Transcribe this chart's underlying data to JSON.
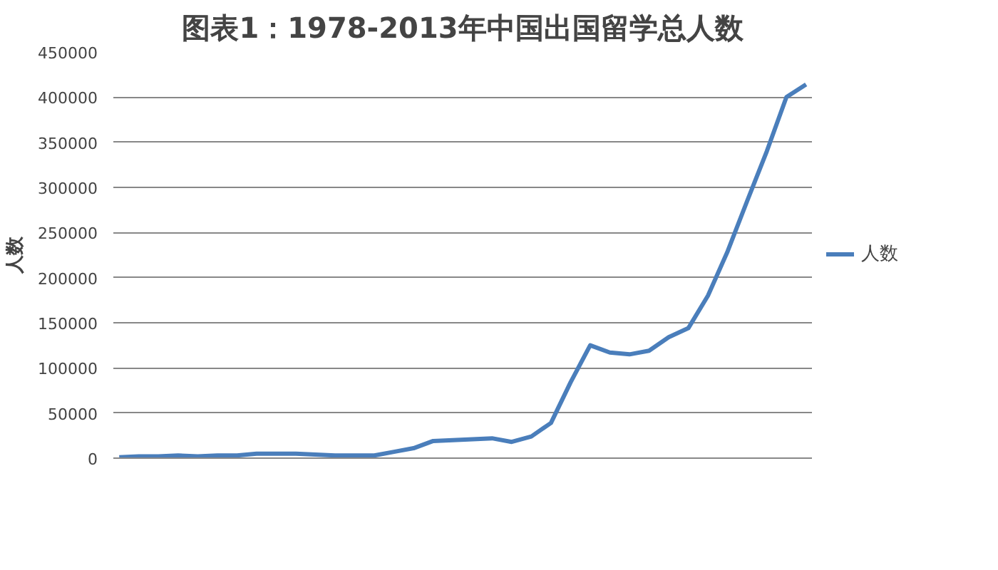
{
  "chart_data": {
    "type": "line",
    "title": "图表1：1978-2013年中国出国留学总人数",
    "ylabel": "人数",
    "categories": [
      null,
      null,
      null,
      null,
      null,
      null,
      null,
      null,
      null,
      null,
      null,
      null,
      null,
      null,
      null,
      null,
      null,
      null,
      null,
      null,
      null,
      null,
      null,
      null,
      null,
      null,
      null,
      null,
      null,
      null,
      null,
      null,
      null,
      null,
      null,
      null
    ],
    "series": [
      {
        "name": "人数",
        "color": "#4a7ebb",
        "values": [
          1000,
          2000,
          2000,
          3000,
          2000,
          3000,
          3000,
          5000,
          5000,
          5000,
          4000,
          3000,
          3000,
          3000,
          7000,
          11000,
          19000,
          20000,
          21000,
          22000,
          18000,
          24000,
          39000,
          84000,
          125000,
          117000,
          115000,
          119000,
          134000,
          144000,
          180000,
          229000,
          285000,
          340000,
          400000,
          414000
        ]
      }
    ],
    "ylim": [
      0,
      450000
    ],
    "yticks": [
      0,
      50000,
      100000,
      150000,
      200000,
      250000,
      300000,
      350000,
      400000,
      450000
    ],
    "grid": "y",
    "legend": "right",
    "tick_labels": "y",
    "line_style": "solid"
  }
}
